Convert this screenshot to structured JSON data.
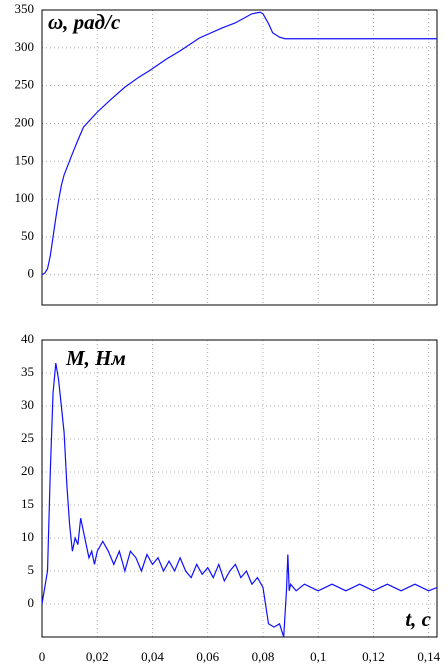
{
  "chart_data": [
    {
      "type": "line",
      "annotation": "ω, рад/с",
      "color": "#1010ff",
      "grid": true,
      "xlim": [
        0,
        0.143
      ],
      "ylim": [
        -40,
        350
      ],
      "xticks": [
        0,
        0.02,
        0.04,
        0.06,
        0.08,
        0.1,
        0.12,
        0.14
      ],
      "yticks": [
        0,
        50,
        100,
        150,
        200,
        250,
        300,
        350
      ],
      "x": [
        0,
        0.001,
        0.002,
        0.003,
        0.004,
        0.005,
        0.006,
        0.007,
        0.008,
        0.0094,
        0.011,
        0.013,
        0.015,
        0.02,
        0.025,
        0.03,
        0.035,
        0.039,
        0.045,
        0.05,
        0.057,
        0.065,
        0.07,
        0.076,
        0.079,
        0.08,
        0.082,
        0.0835,
        0.086,
        0.088,
        0.1,
        0.12,
        0.143
      ],
      "values": [
        0,
        2,
        8,
        25,
        50,
        75,
        98,
        118,
        132,
        145,
        160,
        178,
        195,
        215,
        232,
        248,
        261,
        270,
        285,
        296,
        313,
        326,
        333,
        345,
        347,
        345,
        332,
        320,
        314,
        312,
        312,
        312,
        312
      ]
    },
    {
      "type": "line",
      "annotation": "M, Нм",
      "x_annotation": "t, c",
      "color": "#1010ff",
      "grid": true,
      "xlim": [
        0,
        0.143
      ],
      "ylim": [
        -5,
        40
      ],
      "xticks": [
        0,
        {
          "value": 0.02,
          "label": "0,02"
        },
        {
          "value": 0.04,
          "label": "0,04"
        },
        {
          "value": 0.06,
          "label": "0,06"
        },
        {
          "value": 0.08,
          "label": "0,08"
        },
        {
          "value": 0.1,
          "label": "0,1"
        },
        {
          "value": 0.12,
          "label": "0,12"
        },
        {
          "value": 0.14,
          "label": "0,14"
        }
      ],
      "yticks": [
        0,
        5,
        10,
        15,
        20,
        25,
        30,
        35,
        40
      ],
      "x": [
        0,
        0.002,
        0.003,
        0.004,
        0.005,
        0.006,
        0.007,
        0.008,
        0.009,
        0.01,
        0.011,
        0.012,
        0.013,
        0.014,
        0.015,
        0.016,
        0.017,
        0.018,
        0.019,
        0.02,
        0.022,
        0.024,
        0.026,
        0.028,
        0.03,
        0.032,
        0.034,
        0.036,
        0.038,
        0.04,
        0.042,
        0.044,
        0.046,
        0.048,
        0.05,
        0.052,
        0.054,
        0.056,
        0.058,
        0.06,
        0.062,
        0.064,
        0.066,
        0.068,
        0.07,
        0.072,
        0.074,
        0.076,
        0.078,
        0.08,
        0.082,
        0.084,
        0.086,
        0.0875,
        0.0885,
        0.089,
        0.0895,
        0.09,
        0.092,
        0.095,
        0.1,
        0.105,
        0.11,
        0.115,
        0.12,
        0.125,
        0.13,
        0.135,
        0.14,
        0.143
      ],
      "values": [
        0,
        5,
        20,
        32,
        36.5,
        34,
        30,
        26,
        18,
        12,
        8,
        10,
        9,
        13,
        11,
        9,
        7,
        8,
        6,
        8,
        9.5,
        8,
        6,
        8,
        5,
        8,
        7,
        5,
        7.5,
        6,
        7,
        5,
        6.5,
        5,
        7,
        5,
        4,
        6,
        4.5,
        5.5,
        4,
        6,
        3.5,
        5,
        6,
        4,
        5,
        3,
        4,
        2.5,
        -3,
        -3.5,
        -3,
        -5,
        2,
        7.5,
        2,
        3,
        2,
        3,
        2,
        3,
        2,
        3,
        2,
        3,
        2,
        3,
        2,
        2.5
      ]
    }
  ]
}
